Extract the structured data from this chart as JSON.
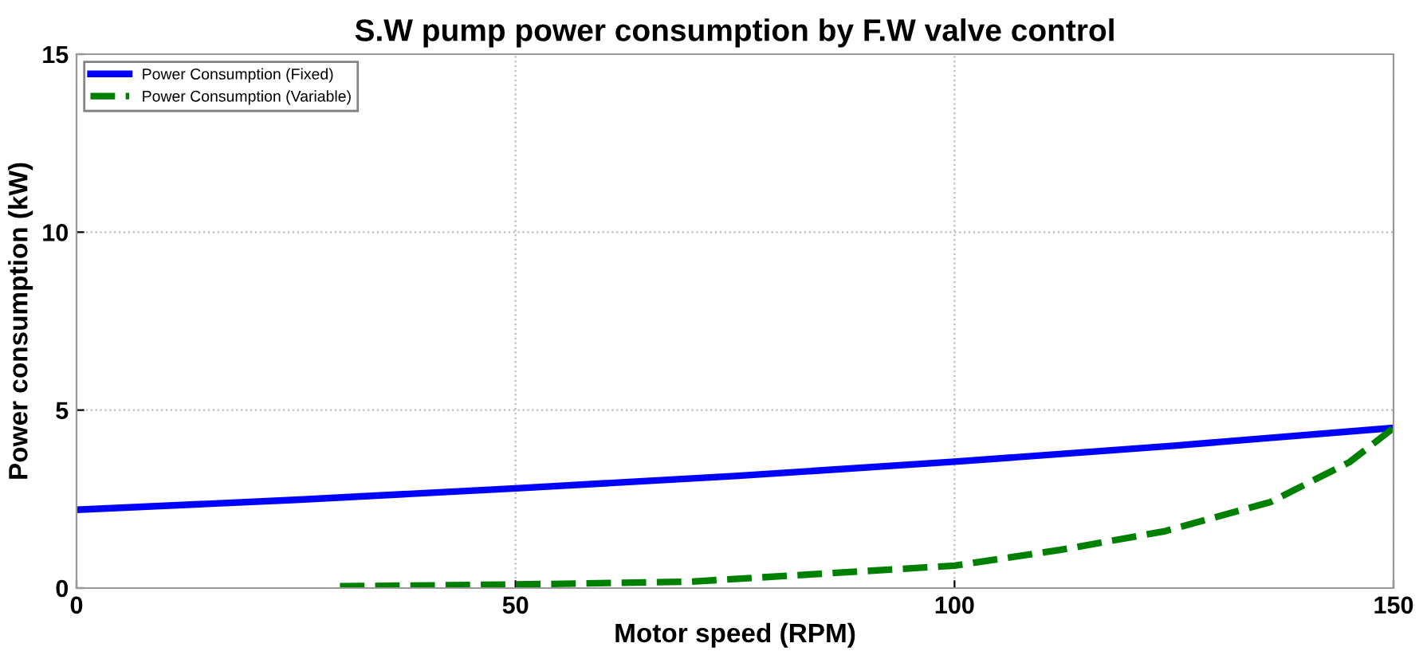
{
  "chart_data": {
    "type": "line",
    "title": "S.W pump power consumption by F.W valve control",
    "xlabel": "Motor speed (RPM)",
    "ylabel": "Power consumption (kW)",
    "xlim": [
      0,
      150
    ],
    "ylim": [
      0,
      15
    ],
    "xticks": [
      0,
      50,
      100,
      150
    ],
    "yticks": [
      0,
      5,
      10,
      15
    ],
    "grid": true,
    "legend": "top left",
    "series": [
      {
        "name": "Power Consumption (Fixed)",
        "color": "#0000ff",
        "line_style": "solid",
        "x": [
          0,
          25,
          50,
          75,
          100,
          125,
          150
        ],
        "values": [
          2.2,
          2.48,
          2.8,
          3.15,
          3.55,
          4.0,
          4.5
        ]
      },
      {
        "name": "Power Consumption (Variable)",
        "color": "#008000",
        "line_style": "dashed",
        "x": [
          30,
          50,
          70,
          88,
          100,
          112,
          124,
          136,
          145,
          150
        ],
        "values": [
          0.05,
          0.1,
          0.18,
          0.45,
          0.63,
          1.07,
          1.6,
          2.42,
          3.54,
          4.5
        ]
      }
    ]
  }
}
